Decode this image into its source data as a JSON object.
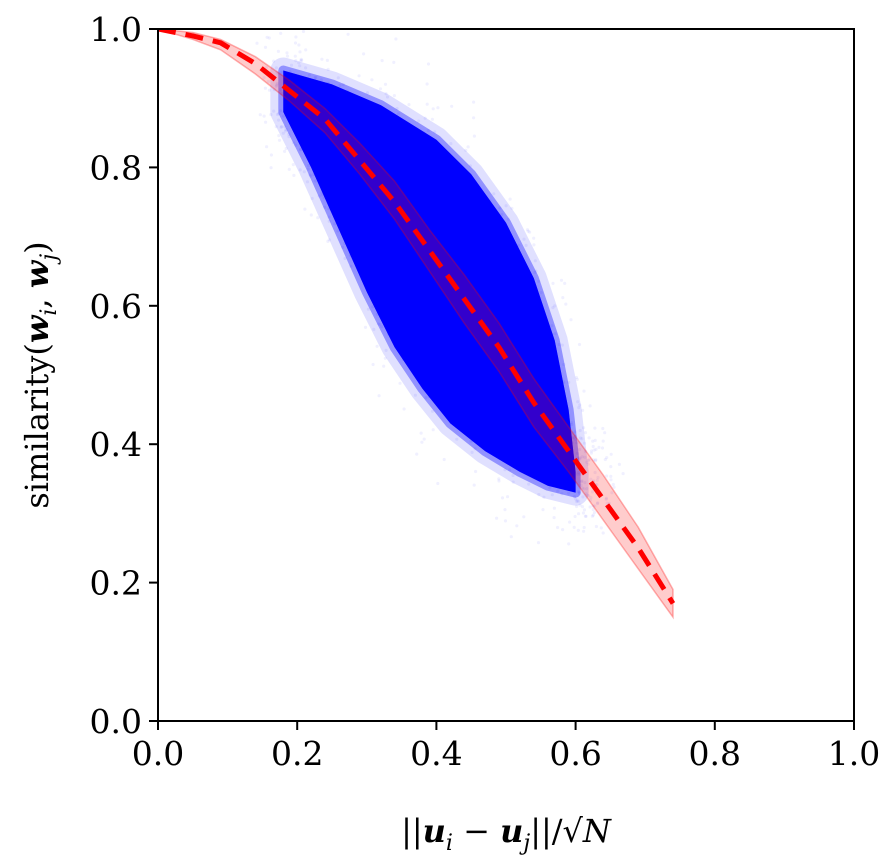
{
  "chart_data": {
    "type": "scatter",
    "title": "",
    "xlabel": "||u_i − u_j||/√N",
    "ylabel": "similarity(w_i, w_j)",
    "xlim": [
      0.0,
      1.0
    ],
    "ylim": [
      0.0,
      1.0
    ],
    "xticks": [
      0.0,
      0.2,
      0.4,
      0.6,
      0.8,
      1.0
    ],
    "yticks": [
      0.0,
      0.2,
      0.4,
      0.6,
      0.8,
      1.0
    ],
    "xtick_labels": [
      "0.0",
      "0.2",
      "0.4",
      "0.6",
      "0.8",
      "1.0"
    ],
    "ytick_labels": [
      "0.0",
      "0.2",
      "0.4",
      "0.6",
      "0.8",
      "1.0"
    ],
    "grid": false,
    "legend": null,
    "series": [
      {
        "kind": "scatter-cloud",
        "color": "#0000ff",
        "description_points": {
          "upper_envelope": [
            [
              0.18,
              0.94
            ],
            [
              0.25,
              0.92
            ],
            [
              0.32,
              0.89
            ],
            [
              0.4,
              0.84
            ],
            [
              0.45,
              0.79
            ],
            [
              0.5,
              0.72
            ],
            [
              0.54,
              0.64
            ],
            [
              0.57,
              0.55
            ],
            [
              0.59,
              0.45
            ],
            [
              0.6,
              0.36
            ]
          ],
          "lower_envelope": [
            [
              0.18,
              0.88
            ],
            [
              0.22,
              0.8
            ],
            [
              0.26,
              0.71
            ],
            [
              0.3,
              0.62
            ],
            [
              0.34,
              0.54
            ],
            [
              0.38,
              0.48
            ],
            [
              0.42,
              0.43
            ],
            [
              0.47,
              0.39
            ],
            [
              0.52,
              0.36
            ],
            [
              0.56,
              0.34
            ],
            [
              0.6,
              0.33
            ]
          ]
        }
      },
      {
        "kind": "mean-line",
        "style": "dashed",
        "color": "#ff0000",
        "x": [
          0.0,
          0.05,
          0.09,
          0.14,
          0.19,
          0.24,
          0.29,
          0.34,
          0.39,
          0.44,
          0.49,
          0.54,
          0.59,
          0.64,
          0.69,
          0.74
        ],
        "y": [
          1.0,
          0.99,
          0.98,
          0.95,
          0.91,
          0.87,
          0.81,
          0.75,
          0.68,
          0.61,
          0.54,
          0.46,
          0.39,
          0.32,
          0.25,
          0.17
        ]
      },
      {
        "kind": "band",
        "color": "#ff0000",
        "opacity": 0.2,
        "x": [
          0.0,
          0.05,
          0.09,
          0.14,
          0.19,
          0.24,
          0.29,
          0.34,
          0.39,
          0.44,
          0.49,
          0.54,
          0.59,
          0.64,
          0.69,
          0.74
        ],
        "upper": [
          1.0,
          0.995,
          0.985,
          0.96,
          0.925,
          0.885,
          0.835,
          0.78,
          0.71,
          0.645,
          0.575,
          0.495,
          0.425,
          0.355,
          0.28,
          0.19
        ],
        "lower": [
          1.0,
          0.985,
          0.97,
          0.935,
          0.895,
          0.85,
          0.79,
          0.725,
          0.65,
          0.575,
          0.505,
          0.425,
          0.36,
          0.29,
          0.22,
          0.15
        ]
      }
    ]
  }
}
